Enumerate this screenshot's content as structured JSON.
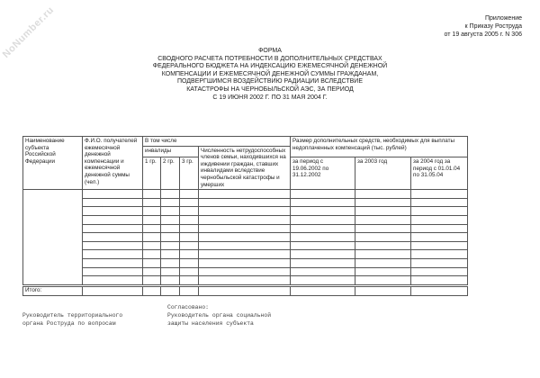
{
  "watermark": "NoNumber.ru",
  "appendix": {
    "line1": "Приложение",
    "line2": "к Приказу Роструда",
    "line3": "от 19 августа 2005 г. N 306"
  },
  "title": {
    "form": "ФОРМА",
    "lines": [
      "СВОДНОГО РАСЧЕТА ПОТРЕБНОСТИ В ДОПОЛНИТЕЛЬНЫХ СРЕДСТВАХ",
      "ФЕДЕРАЛЬНОГО БЮДЖЕТА НА ИНДЕКСАЦИЮ ЕЖЕМЕСЯЧНОЙ ДЕНЕЖНОЙ",
      "КОМПЕНСАЦИИ И ЕЖЕМЕСЯЧНОЙ ДЕНЕЖНОЙ СУММЫ ГРАЖДАНАМ,",
      "ПОДВЕРГШИМСЯ ВОЗДЕЙСТВИЮ РАДИАЦИИ ВСЛЕДСТВИЕ",
      "КАТАСТРОФЫ НА ЧЕРНОБЫЛЬСКОЙ АЭС, ЗА ПЕРИОД",
      "С 19 ИЮНЯ 2002 Г. ПО 31 МАЯ 2004 Г."
    ]
  },
  "table": {
    "headers": {
      "subject": "Наименование субъекта Российской Федерации",
      "recipients": "Ф.И.О. получателей ежемесячной денежной компенсации и ежемесячной денежной суммы (чел.)",
      "including": "В том числе",
      "invalids": "инвалиды",
      "group1": "1 гр.",
      "group2": "2 гр.",
      "group3": "3 гр.",
      "family": "Численность нетрудоспособных членов семьи, находившихся на иждивении граждан, ставших инвалидами вследствие чернобыльской катастрофы и умерших",
      "amount": "Размер дополнительных средств, необходимых для выплаты недоплаченных компенсаций (тыс. рублей)",
      "period2002": "за период с 19.06.2002 по 31.12.2002",
      "year2003": "за 2003 год",
      "period2004": "за 2004 год за период с 01.01.04 по 31.05.04"
    },
    "total_label": "Итого:"
  },
  "signatures": {
    "agreed": "Согласовано:",
    "left_line1": "Руководитель территориального",
    "left_line2": "органа Роструда по вопросам",
    "right_line1": "Руководитель органа социальной",
    "right_line2": "защиты населения субъекта"
  }
}
